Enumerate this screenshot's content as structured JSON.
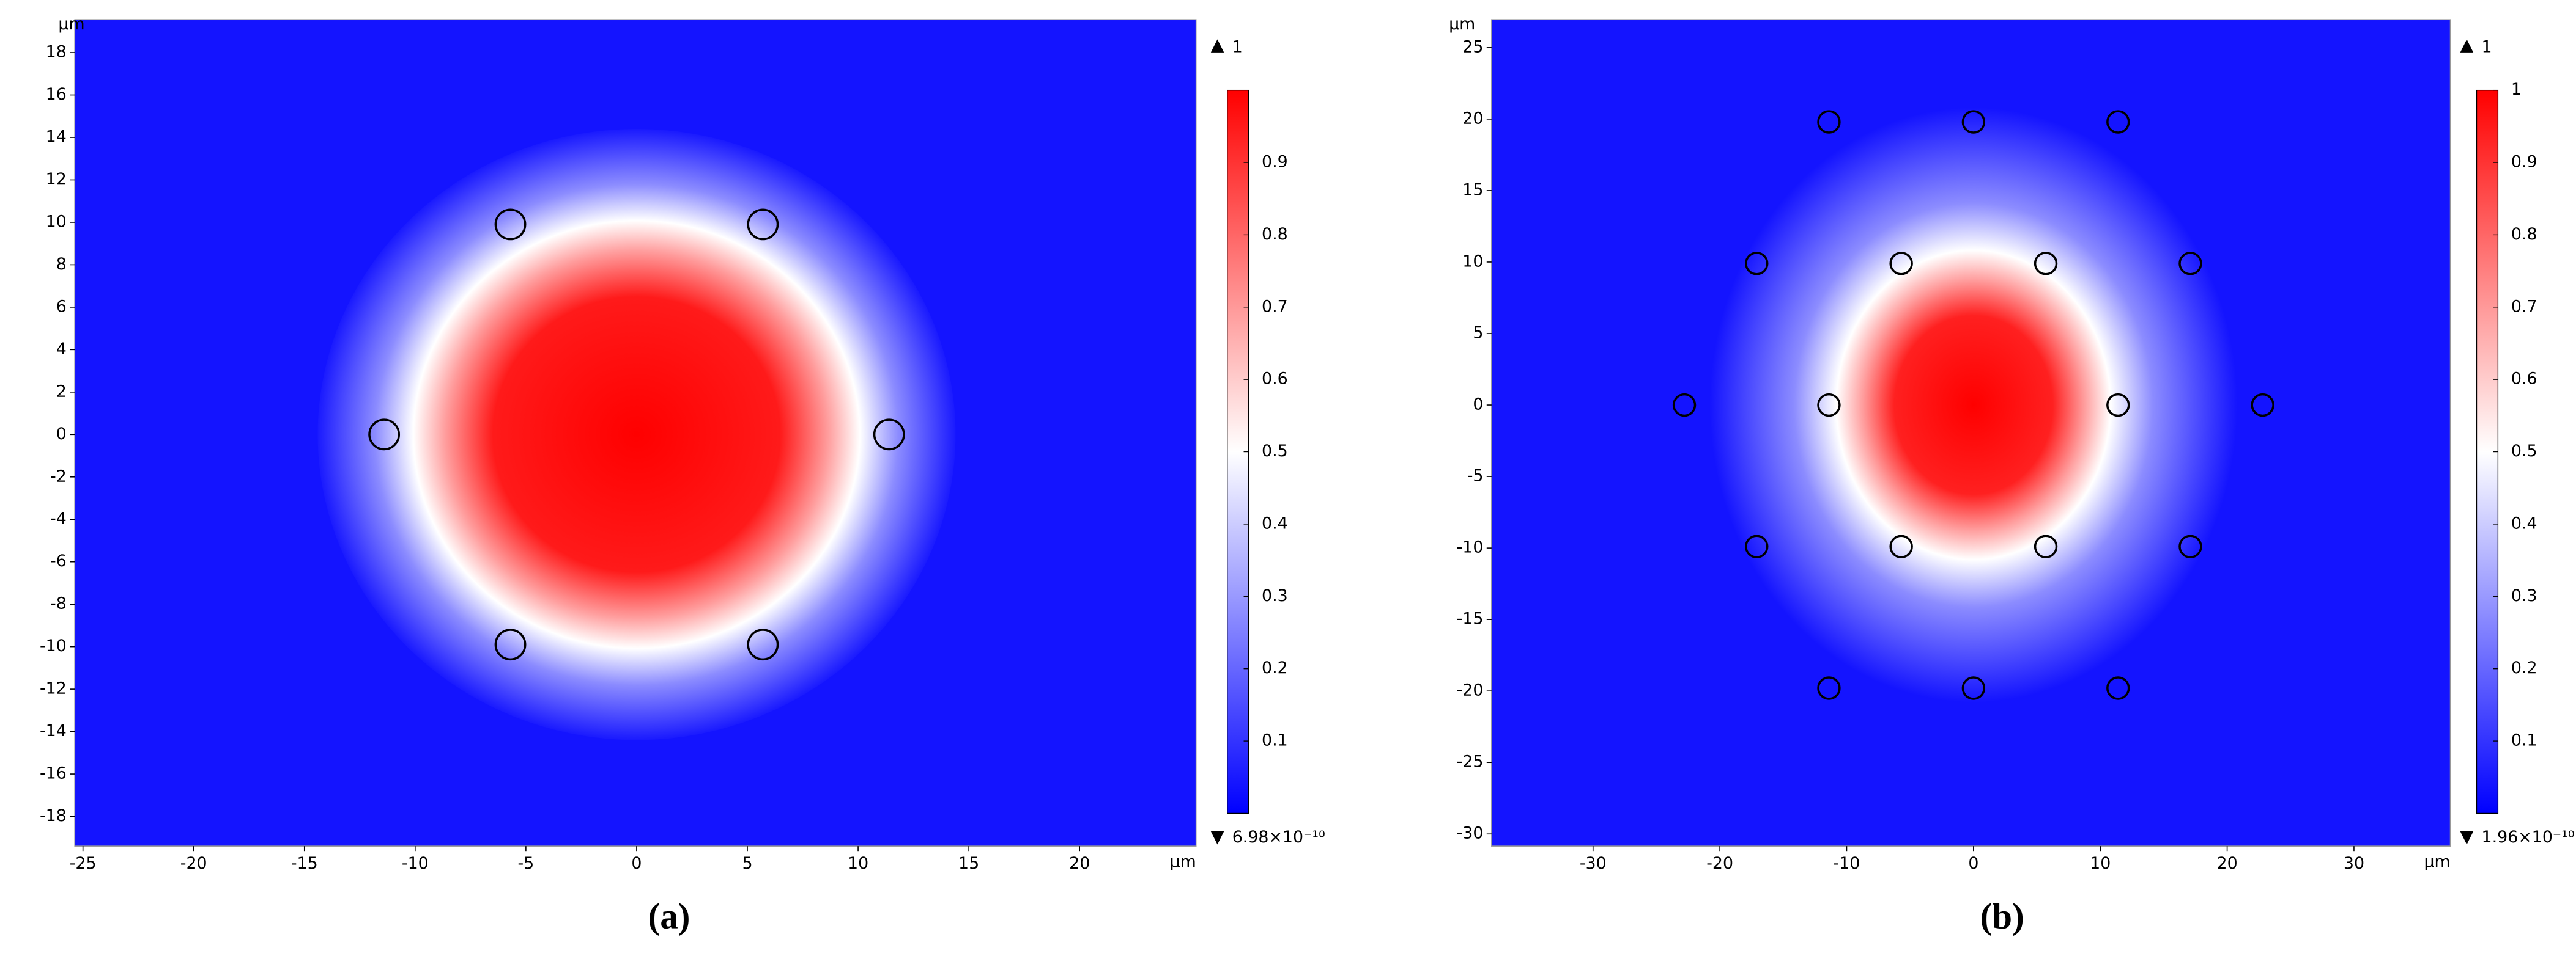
{
  "chart_data": [
    {
      "type": "heatmap",
      "panel_label": "(a)",
      "xlabel": "μm",
      "ylabel": "μm",
      "xlim": [
        -25.37,
        25.26
      ],
      "ylim": [
        -19.4,
        19.55
      ],
      "xticks": [
        -25,
        -20,
        -15,
        -10,
        -5,
        0,
        5,
        10,
        15,
        20
      ],
      "yticks": [
        -18,
        -16,
        -14,
        -12,
        -10,
        -8,
        -6,
        -4,
        -2,
        0,
        2,
        4,
        6,
        8,
        10,
        12,
        14,
        16,
        18
      ],
      "clim": [
        {
          "value": 6.98e-10,
          "label": "6.98×10⁻¹⁰"
        },
        1
      ],
      "cticks": [
        0.1,
        0.2,
        0.3,
        0.4,
        0.5,
        0.6,
        0.7,
        0.8,
        0.9
      ],
      "holes": {
        "x": [
          -5.7,
          5.7,
          -11.4,
          11.4,
          -5.7,
          5.7
        ],
        "y": [
          9.9,
          9.9,
          0,
          0,
          -9.9,
          -9.9
        ]
      }
    },
    {
      "type": "heatmap",
      "panel_label": "(b)",
      "xlabel": "μm",
      "ylabel": "μm",
      "xlim": [
        -38.0,
        37.6
      ],
      "ylim": [
        -30.85,
        26.95
      ],
      "xticks": [
        -30,
        -20,
        -10,
        0,
        10,
        20,
        30
      ],
      "yticks": [
        -30,
        -25,
        -20,
        -15,
        -10,
        -5,
        0,
        5,
        10,
        15,
        20,
        25
      ],
      "clim": [
        {
          "value": 1.96e-10,
          "label": "1.96×10⁻¹⁰"
        },
        1
      ],
      "cticks": [
        0.1,
        0.2,
        0.3,
        0.4,
        0.5,
        0.6,
        0.7,
        0.8,
        0.9,
        1
      ],
      "holes": {
        "x": [
          -11.4,
          0,
          11.4,
          -17.1,
          -5.7,
          5.7,
          17.1,
          -22.8,
          -11.4,
          11.4,
          22.8,
          -17.1,
          -5.7,
          5.7,
          17.1,
          -11.4,
          0,
          11.4
        ],
        "y": [
          19.8,
          19.8,
          19.8,
          9.9,
          9.9,
          9.9,
          9.9,
          0,
          0,
          0,
          0,
          -9.9,
          -9.9,
          -9.9,
          -9.9,
          -19.8,
          -19.8,
          -19.8
        ]
      }
    }
  ]
}
